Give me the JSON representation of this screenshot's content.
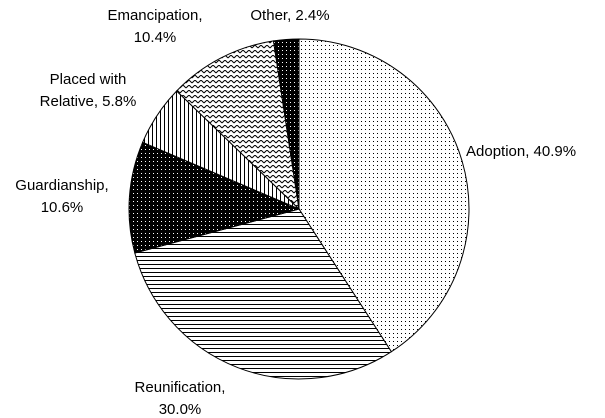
{
  "chart_data": {
    "type": "pie",
    "values": [
      40.9,
      30.0,
      10.6,
      5.8,
      10.4,
      2.4
    ],
    "value_labels": [
      [
        "Adoption, 40.9%"
      ],
      [
        "Reunification,",
        "30.0%"
      ],
      [
        "Guardianship,",
        "10.6%"
      ],
      [
        "Placed with",
        "Relative, 5.8%"
      ],
      [
        "Emancipation,",
        "10.4%"
      ],
      [
        "Other, 2.4%"
      ]
    ],
    "patterns": [
      "dots",
      "hlines",
      "darkdots",
      "vlines",
      "zigzag",
      "blackdots"
    ]
  }
}
